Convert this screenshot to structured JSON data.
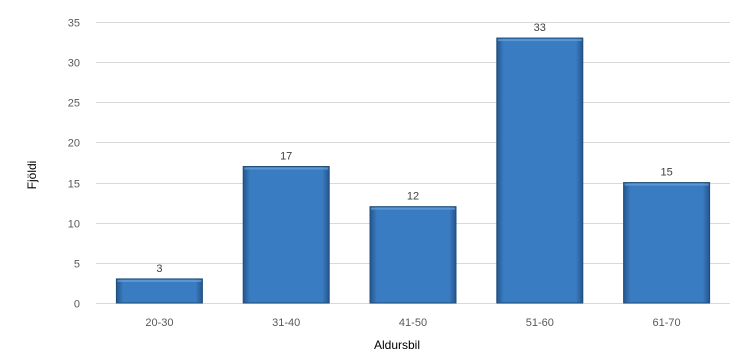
{
  "chart_data": {
    "type": "bar",
    "categories": [
      "20-30",
      "31-40",
      "41-50",
      "51-60",
      "61-70"
    ],
    "values": [
      3,
      17,
      12,
      33,
      15
    ],
    "title": "",
    "xlabel": "Aldursbil",
    "ylabel": "Fjöldi",
    "ylim": [
      0,
      35
    ],
    "yticks": [
      0,
      5,
      10,
      15,
      20,
      25,
      30,
      35
    ],
    "grid": true,
    "legend": "none",
    "data_labels": true,
    "bar_color": "#3a7cc1",
    "bar_edge_color": "#1f4e79"
  }
}
